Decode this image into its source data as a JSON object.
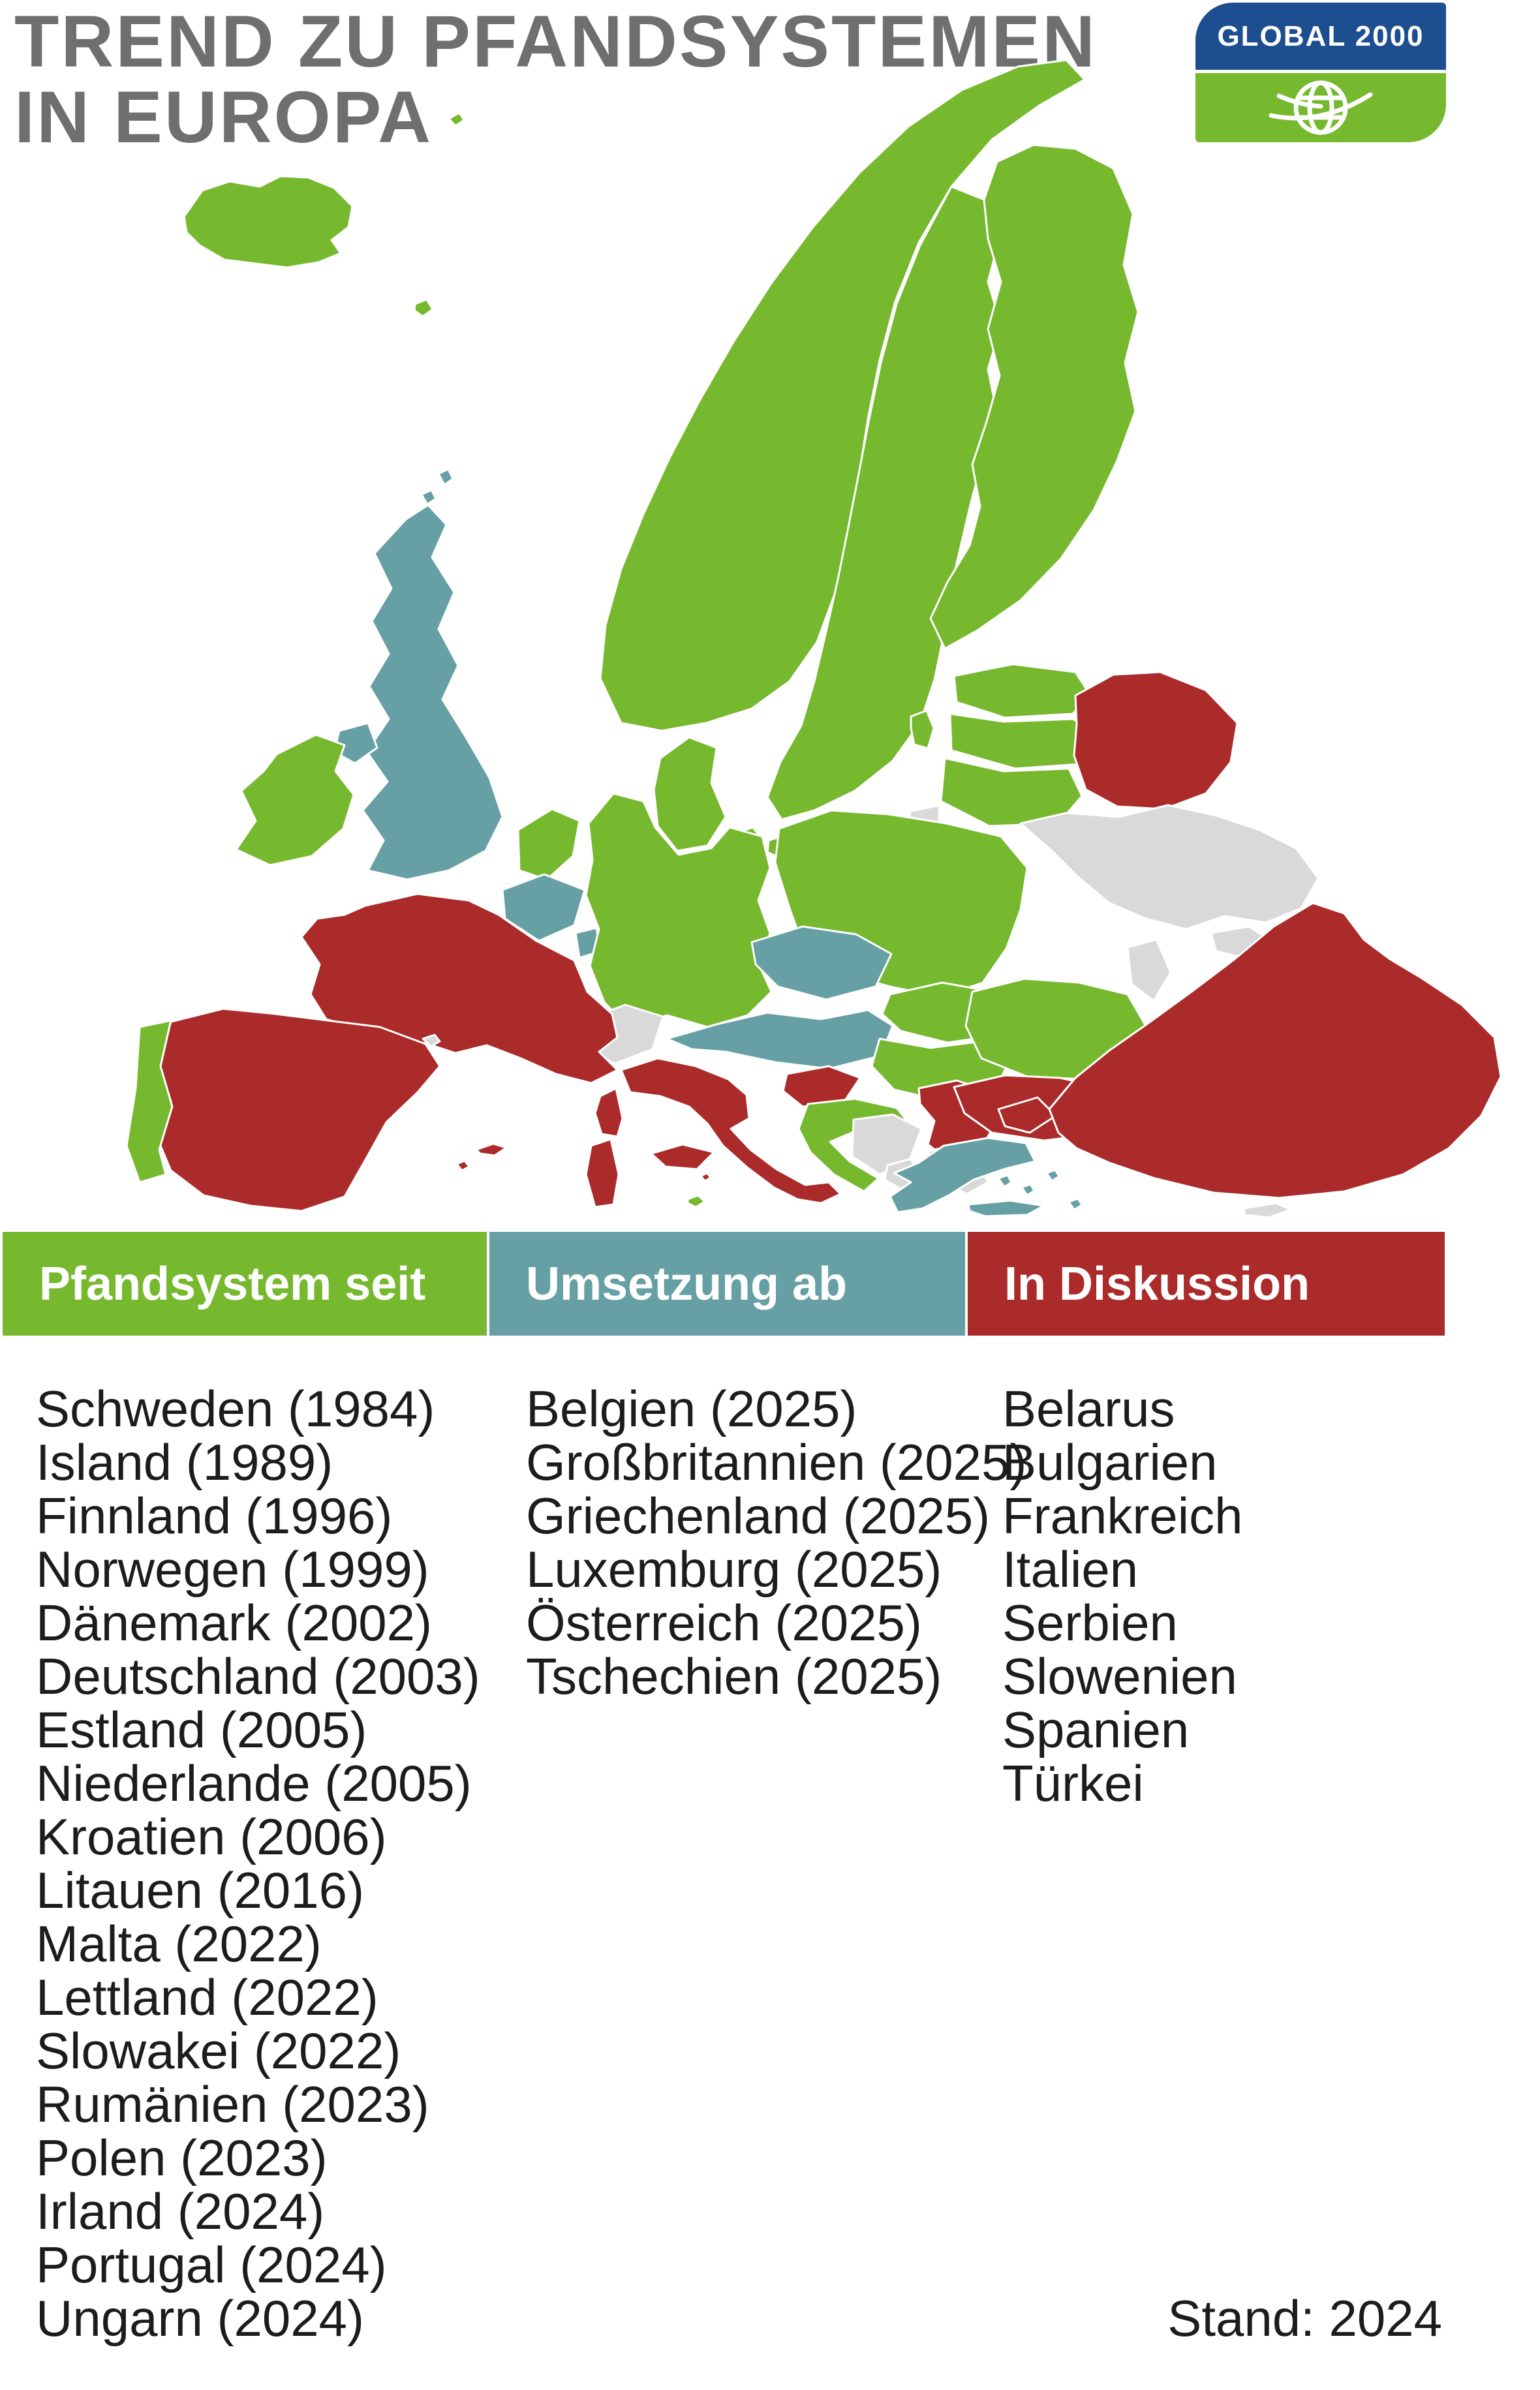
{
  "header": {
    "title_line1": "TREND ZU PFANDSYSTEMEN",
    "title_line2": "IN EUROPA"
  },
  "logo": {
    "text": "GLOBAL 2000"
  },
  "colors": {
    "green": "#76b82e",
    "teal": "#66a0a4",
    "red": "#ab2a2a",
    "gray": "#d9d9d9",
    "title": "#706f6f",
    "text": "#1c1c1c",
    "logo_blue": "#1d4e8f",
    "logo_green": "#76b82e"
  },
  "legend": {
    "columns": [
      {
        "id": "deposit",
        "label": "Pfandsystem seit",
        "items": [
          "Schweden (1984)",
          "Island (1989)",
          "Finnland (1996)",
          "Norwegen (1999)",
          "Dänemark (2002)",
          "Deutschland (2003)",
          "Estland (2005)",
          "Niederlande (2005)",
          "Kroatien (2006)",
          "Litauen (2016)",
          "Malta (2022)",
          "Lettland (2022)",
          "Slowakei (2022)",
          "Rumänien (2023)",
          "Polen (2023)",
          "Irland (2024)",
          "Portugal (2024)",
          "Ungarn (2024)"
        ]
      },
      {
        "id": "implementation",
        "label": "Umsetzung ab",
        "items": [
          "Belgien (2025)",
          "Großbritannien (2025)",
          "Griechenland (2025)",
          "Luxemburg (2025)",
          "Österreich (2025)",
          "Tschechien (2025)"
        ]
      },
      {
        "id": "discussion",
        "label": "In Diskussion",
        "items": [
          "Belarus",
          "Bulgarien",
          "Frankreich",
          "Italien",
          "Serbien",
          "Slowenien",
          "Spanien",
          "Türkei"
        ]
      }
    ]
  },
  "footer": {
    "status_label": "Stand: 2024"
  },
  "map": {
    "categories": {
      "deposit": "green",
      "implementation": "teal",
      "discussion": "red",
      "none": "gray"
    },
    "countries": [
      {
        "id": "island",
        "name": "Island",
        "category": "deposit"
      },
      {
        "id": "faeroeer",
        "name": "Färöer",
        "category": "deposit"
      },
      {
        "id": "janmayen",
        "name": "Jan Mayen",
        "category": "deposit"
      },
      {
        "id": "norwegen",
        "name": "Norwegen",
        "category": "deposit"
      },
      {
        "id": "schweden",
        "name": "Schweden",
        "category": "deposit"
      },
      {
        "id": "finnland",
        "name": "Finnland",
        "category": "deposit"
      },
      {
        "id": "daenemark",
        "name": "Dänemark",
        "category": "deposit"
      },
      {
        "id": "estland",
        "name": "Estland",
        "category": "deposit"
      },
      {
        "id": "lettland",
        "name": "Lettland",
        "category": "deposit"
      },
      {
        "id": "litauen",
        "name": "Litauen",
        "category": "deposit"
      },
      {
        "id": "irland",
        "name": "Irland",
        "category": "deposit"
      },
      {
        "id": "niederlande",
        "name": "Niederlande",
        "category": "deposit"
      },
      {
        "id": "deutschland",
        "name": "Deutschland",
        "category": "deposit"
      },
      {
        "id": "polen",
        "name": "Polen",
        "category": "deposit"
      },
      {
        "id": "slowakei",
        "name": "Slowakei",
        "category": "deposit"
      },
      {
        "id": "ungarn",
        "name": "Ungarn",
        "category": "deposit"
      },
      {
        "id": "rumaenien",
        "name": "Rumänien",
        "category": "deposit"
      },
      {
        "id": "kroatien",
        "name": "Kroatien",
        "category": "deposit"
      },
      {
        "id": "portugal",
        "name": "Portugal",
        "category": "deposit"
      },
      {
        "id": "malta",
        "name": "Malta",
        "category": "deposit"
      },
      {
        "id": "grossbritannien",
        "name": "Großbritannien",
        "category": "implementation"
      },
      {
        "id": "belgien",
        "name": "Belgien",
        "category": "implementation"
      },
      {
        "id": "luxemburg",
        "name": "Luxemburg",
        "category": "implementation"
      },
      {
        "id": "tschechien",
        "name": "Tschechien",
        "category": "implementation"
      },
      {
        "id": "oesterreich",
        "name": "Österreich",
        "category": "implementation"
      },
      {
        "id": "griechenland",
        "name": "Griechenland",
        "category": "implementation"
      },
      {
        "id": "frankreich",
        "name": "Frankreich",
        "category": "discussion"
      },
      {
        "id": "spanien",
        "name": "Spanien",
        "category": "discussion"
      },
      {
        "id": "italien",
        "name": "Italien",
        "category": "discussion"
      },
      {
        "id": "slowenien",
        "name": "Slowenien",
        "category": "discussion"
      },
      {
        "id": "serbien",
        "name": "Serbien",
        "category": "discussion"
      },
      {
        "id": "bulgarien",
        "name": "Bulgarien",
        "category": "discussion"
      },
      {
        "id": "belarus",
        "name": "Belarus",
        "category": "discussion"
      },
      {
        "id": "tuerkei",
        "name": "Türkei",
        "category": "discussion"
      },
      {
        "id": "schweiz",
        "name": "Schweiz",
        "category": "none"
      },
      {
        "id": "ukraine",
        "name": "Ukraine",
        "category": "none"
      },
      {
        "id": "moldau",
        "name": "Moldau",
        "category": "none"
      },
      {
        "id": "bosnien",
        "name": "Bosnien und Herzegowina",
        "category": "none"
      },
      {
        "id": "montenegro",
        "name": "Montenegro",
        "category": "none"
      },
      {
        "id": "kosovo",
        "name": "Kosovo",
        "category": "none"
      },
      {
        "id": "albanien",
        "name": "Albanien",
        "category": "none"
      },
      {
        "id": "nordmazedonien",
        "name": "Nordmazedonien",
        "category": "none"
      },
      {
        "id": "zypern",
        "name": "Zypern",
        "category": "none"
      },
      {
        "id": "kaliningrad",
        "name": "Kaliningrad",
        "category": "none"
      },
      {
        "id": "andorra",
        "name": "Andorra",
        "category": "none"
      }
    ]
  }
}
